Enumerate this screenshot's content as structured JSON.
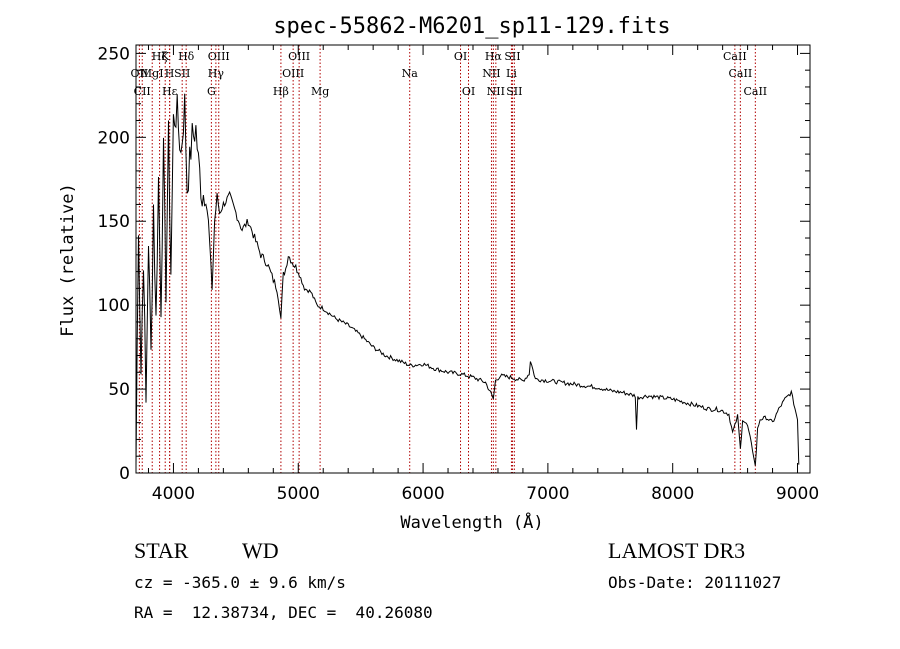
{
  "chart_data": {
    "type": "line",
    "title": "spec-55862-M6201_sp11-129.fits",
    "xlabel": "Wavelength (Å)",
    "ylabel": "Flux (relative)",
    "xlim": [
      3700,
      9100
    ],
    "ylim": [
      0,
      255
    ],
    "x_ticks": [
      4000,
      5000,
      6000,
      7000,
      8000,
      9000
    ],
    "y_ticks": [
      0,
      50,
      100,
      150,
      200,
      250
    ],
    "line_color": "#000000",
    "marker_color": "#b00000",
    "series": [
      {
        "name": "flux",
        "x": [
          3700,
          3720,
          3740,
          3760,
          3780,
          3800,
          3820,
          3840,
          3860,
          3880,
          3900,
          3920,
          3940,
          3960,
          3980,
          4000,
          4030,
          4060,
          4090,
          4110,
          4150,
          4180,
          4200,
          4230,
          4260,
          4290,
          4310,
          4330,
          4350,
          4370,
          4400,
          4450,
          4500,
          4550,
          4600,
          4650,
          4700,
          4750,
          4800,
          4830,
          4850,
          4861,
          4880,
          4900,
          4920,
          4950,
          5000,
          5050,
          5100,
          5150,
          5200,
          5300,
          5400,
          5500,
          5600,
          5700,
          5800,
          5900,
          6000,
          6100,
          6200,
          6300,
          6400,
          6500,
          6540,
          6563,
          6580,
          6620,
          6700,
          6800,
          6850,
          6860,
          6900,
          7000,
          7100,
          7200,
          7300,
          7400,
          7500,
          7600,
          7700,
          7710,
          7720,
          7800,
          7900,
          8000,
          8100,
          8200,
          8300,
          8350,
          8400,
          8450,
          8480,
          8498,
          8520,
          8542,
          8560,
          8600,
          8650,
          8662,
          8680,
          8700,
          8750,
          8800,
          8850,
          8900,
          8950,
          9000,
          9010
        ],
        "y": [
          5,
          150,
          60,
          130,
          40,
          140,
          70,
          160,
          90,
          175,
          100,
          190,
          110,
          200,
          120,
          210,
          215,
          190,
          220,
          170,
          200,
          205,
          185,
          165,
          170,
          135,
          110,
          150,
          165,
          155,
          160,
          165,
          155,
          145,
          150,
          140,
          130,
          125,
          115,
          110,
          100,
          92,
          118,
          122,
          130,
          126,
          120,
          110,
          108,
          100,
          98,
          92,
          88,
          82,
          75,
          70,
          67,
          64,
          65,
          62,
          60,
          59,
          57,
          54,
          48,
          44,
          55,
          58,
          57,
          55,
          59,
          67,
          56,
          55,
          54,
          53,
          52,
          51,
          49,
          48,
          46,
          26,
          45,
          46,
          45,
          44,
          42,
          40,
          38,
          38,
          37,
          35,
          24,
          28,
          34,
          14,
          32,
          28,
          10,
          4,
          26,
          32,
          33,
          30,
          38,
          44,
          48,
          32,
          5
        ]
      }
    ],
    "lines": [
      {
        "name": "Hζ",
        "x": 3889,
        "row": 0
      },
      {
        "name": "K",
        "x": 3934,
        "row": 0
      },
      {
        "name": "H",
        "x": 3969,
        "row": 1
      },
      {
        "name": "Hε",
        "x": 3970,
        "row": 2
      },
      {
        "name": "Hδ",
        "x": 4102,
        "row": 0
      },
      {
        "name": "OII",
        "x": 3727,
        "row": 1
      },
      {
        "name": "CII",
        "x": 3750,
        "row": 2
      },
      {
        "name": "MgI",
        "x": 3830,
        "row": 1
      },
      {
        "name": "SII",
        "x": 4070,
        "row": 1
      },
      {
        "name": "OIII",
        "x": 4363,
        "row": 0
      },
      {
        "name": "Hγ",
        "x": 4340,
        "row": 1
      },
      {
        "name": "G",
        "x": 4304,
        "row": 2
      },
      {
        "name": "Hβ",
        "x": 4861,
        "row": 2
      },
      {
        "name": "OIII",
        "x": 4959,
        "row": 1
      },
      {
        "name": "OIII",
        "x": 5007,
        "row": 0
      },
      {
        "name": "Mg",
        "x": 5175,
        "row": 2
      },
      {
        "name": "Na",
        "x": 5893,
        "row": 1
      },
      {
        "name": "OI",
        "x": 6300,
        "row": 0
      },
      {
        "name": "OI",
        "x": 6364,
        "row": 2
      },
      {
        "name": "NII",
        "x": 6548,
        "row": 1
      },
      {
        "name": "Hα",
        "x": 6563,
        "row": 0
      },
      {
        "name": "NII",
        "x": 6583,
        "row": 2
      },
      {
        "name": "SII",
        "x": 6716,
        "row": 0
      },
      {
        "name": "SII",
        "x": 6731,
        "row": 2
      },
      {
        "name": "Li",
        "x": 6708,
        "row": 1
      },
      {
        "name": "CaII",
        "x": 8498,
        "row": 0
      },
      {
        "name": "CaII",
        "x": 8542,
        "row": 1
      },
      {
        "name": "CaII",
        "x": 8662,
        "row": 2
      }
    ]
  },
  "footer": {
    "object_class": "STAR",
    "subclass": "WD",
    "survey": "LAMOST DR3",
    "redshift": "cz = -365.0 ± 9.6 km/s",
    "obs_date": "Obs-Date: 20111027",
    "coords": "RA =  12.38734, DEC =  40.26080"
  }
}
